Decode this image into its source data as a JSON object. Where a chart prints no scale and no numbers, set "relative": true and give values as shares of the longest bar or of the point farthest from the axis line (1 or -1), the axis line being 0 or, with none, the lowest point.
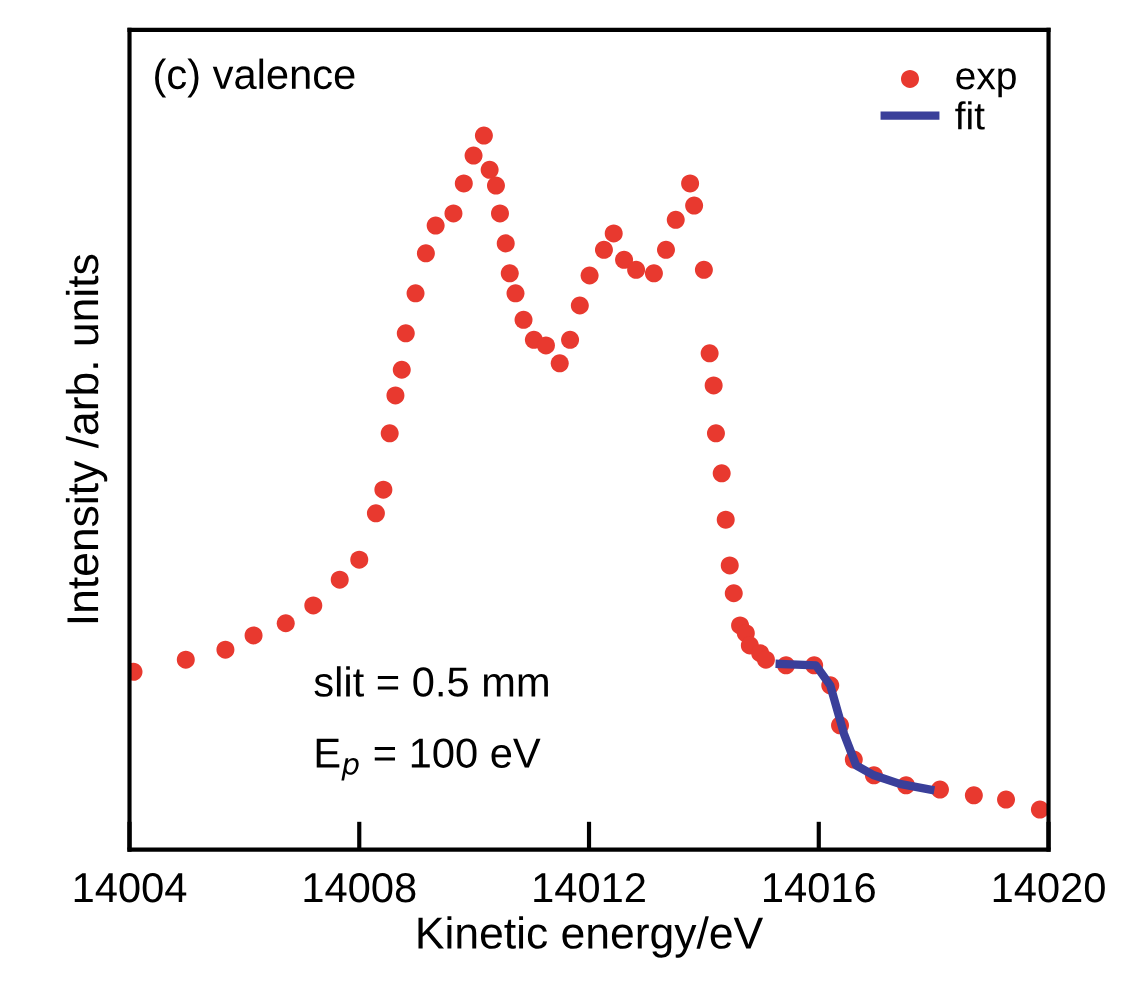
{
  "chart_data": {
    "type": "scatter",
    "relative": true,
    "xlabel": "Kinetic energy/eV",
    "ylabel": "Intensity /arb. units",
    "xlim": [
      14004,
      14020
    ],
    "xticks": [
      14004,
      14008,
      14012,
      14016,
      14020
    ],
    "legend": "top right",
    "grid": false,
    "tick_labels": "x",
    "annotations": [
      "(c) valence",
      "slit = 0.5 mm",
      "E$_{p}$ = 100 eV"
    ],
    "series": [
      {
        "name": "exp",
        "marker": "circle",
        "color": "#e8392f",
        "x": [
          14004.07,
          14004.98,
          14005.67,
          14006.16,
          14006.72,
          14007.2,
          14007.66,
          14008.0,
          14008.29,
          14008.42,
          14008.53,
          14008.63,
          14008.74,
          14008.81,
          14008.98,
          14009.16,
          14009.33,
          14009.64,
          14009.82,
          14009.99,
          14010.17,
          14010.27,
          14010.38,
          14010.45,
          14010.55,
          14010.62,
          14010.72,
          14010.86,
          14011.04,
          14011.25,
          14011.49,
          14011.67,
          14011.84,
          14012.01,
          14012.26,
          14012.43,
          14012.61,
          14012.82,
          14013.13,
          14013.34,
          14013.51,
          14013.76,
          14013.83,
          14014.0,
          14014.1,
          14014.17,
          14014.21,
          14014.31,
          14014.38,
          14014.45,
          14014.52,
          14014.63,
          14014.73,
          14014.8,
          14014.98,
          14015.08,
          14015.43,
          14015.92,
          14016.2,
          14016.37,
          14016.61,
          14016.96,
          14017.52,
          14018.11,
          14018.7,
          14019.26,
          14019.85
        ],
        "values": [
          0.249,
          0.266,
          0.28,
          0.3,
          0.317,
          0.342,
          0.378,
          0.406,
          0.471,
          0.504,
          0.583,
          0.636,
          0.672,
          0.723,
          0.779,
          0.835,
          0.874,
          0.891,
          0.933,
          0.972,
          1.0,
          0.952,
          0.93,
          0.891,
          0.849,
          0.807,
          0.779,
          0.742,
          0.714,
          0.706,
          0.681,
          0.714,
          0.762,
          0.804,
          0.84,
          0.863,
          0.826,
          0.812,
          0.807,
          0.84,
          0.882,
          0.933,
          0.902,
          0.812,
          0.695,
          0.65,
          0.583,
          0.527,
          0.462,
          0.398,
          0.359,
          0.314,
          0.303,
          0.286,
          0.275,
          0.266,
          0.258,
          0.258,
          0.23,
          0.174,
          0.126,
          0.104,
          0.09,
          0.084,
          0.076,
          0.07,
          0.056
        ]
      },
      {
        "name": "fit",
        "type": "line",
        "marker": "none",
        "line_style": "solid",
        "color": "#3a3f9a",
        "x": [
          14015.32,
          14015.95,
          14016.2,
          14016.44,
          14016.65,
          14016.96,
          14017.41,
          14017.94
        ],
        "values": [
          0.26,
          0.258,
          0.23,
          0.162,
          0.118,
          0.104,
          0.092,
          0.084
        ]
      }
    ]
  }
}
